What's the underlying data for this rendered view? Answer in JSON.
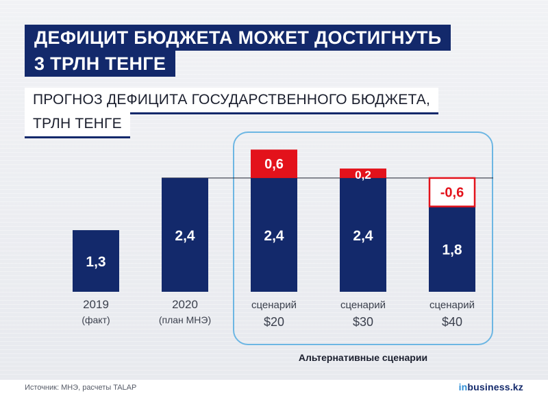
{
  "header": {
    "title_line1": "ДЕФИЦИТ БЮДЖЕТА МОЖЕТ ДОСТИГНУТЬ",
    "title_line2": "3 ТРЛН ТЕНГЕ",
    "subtitle_line1": "ПРОГНОЗ ДЕФИЦИТА ГОСУДАРСТВЕННОГО БЮДЖЕТА,",
    "subtitle_line2": "ТРЛН ТЕНГЕ"
  },
  "scenario_group_label": "Альтернативные сценарии",
  "footer": {
    "source": "Источник: МНЭ, расчеты TALAP",
    "brand_prefix": "in",
    "brand_main": "business.kz"
  },
  "colors": {
    "navy": "#13296b",
    "red": "#e3121b",
    "frame": "#6cb6e3",
    "background": "#eceef2"
  },
  "chart_data": {
    "type": "bar",
    "stacked": true,
    "reference_line": 2.4,
    "categories": [
      {
        "line1": "2019",
        "line2": "(факт)"
      },
      {
        "line1": "2020",
        "line2": "(план МНЭ)"
      },
      {
        "line1": "сценарий",
        "line2": "$20"
      },
      {
        "line1": "сценарий",
        "line2": "$30"
      },
      {
        "line1": "сценарий",
        "line2": "$40"
      }
    ],
    "base": {
      "values": [
        1.3,
        2.4,
        2.4,
        2.4,
        1.8
      ],
      "labels": [
        "1,3",
        "2,4",
        "2,4",
        "2,4",
        "1,8"
      ]
    },
    "delta": {
      "values": [
        0,
        0,
        0.6,
        0.2,
        -0.6
      ],
      "labels": [
        "",
        "",
        "0,6",
        "0,2",
        "-0,6"
      ]
    }
  }
}
